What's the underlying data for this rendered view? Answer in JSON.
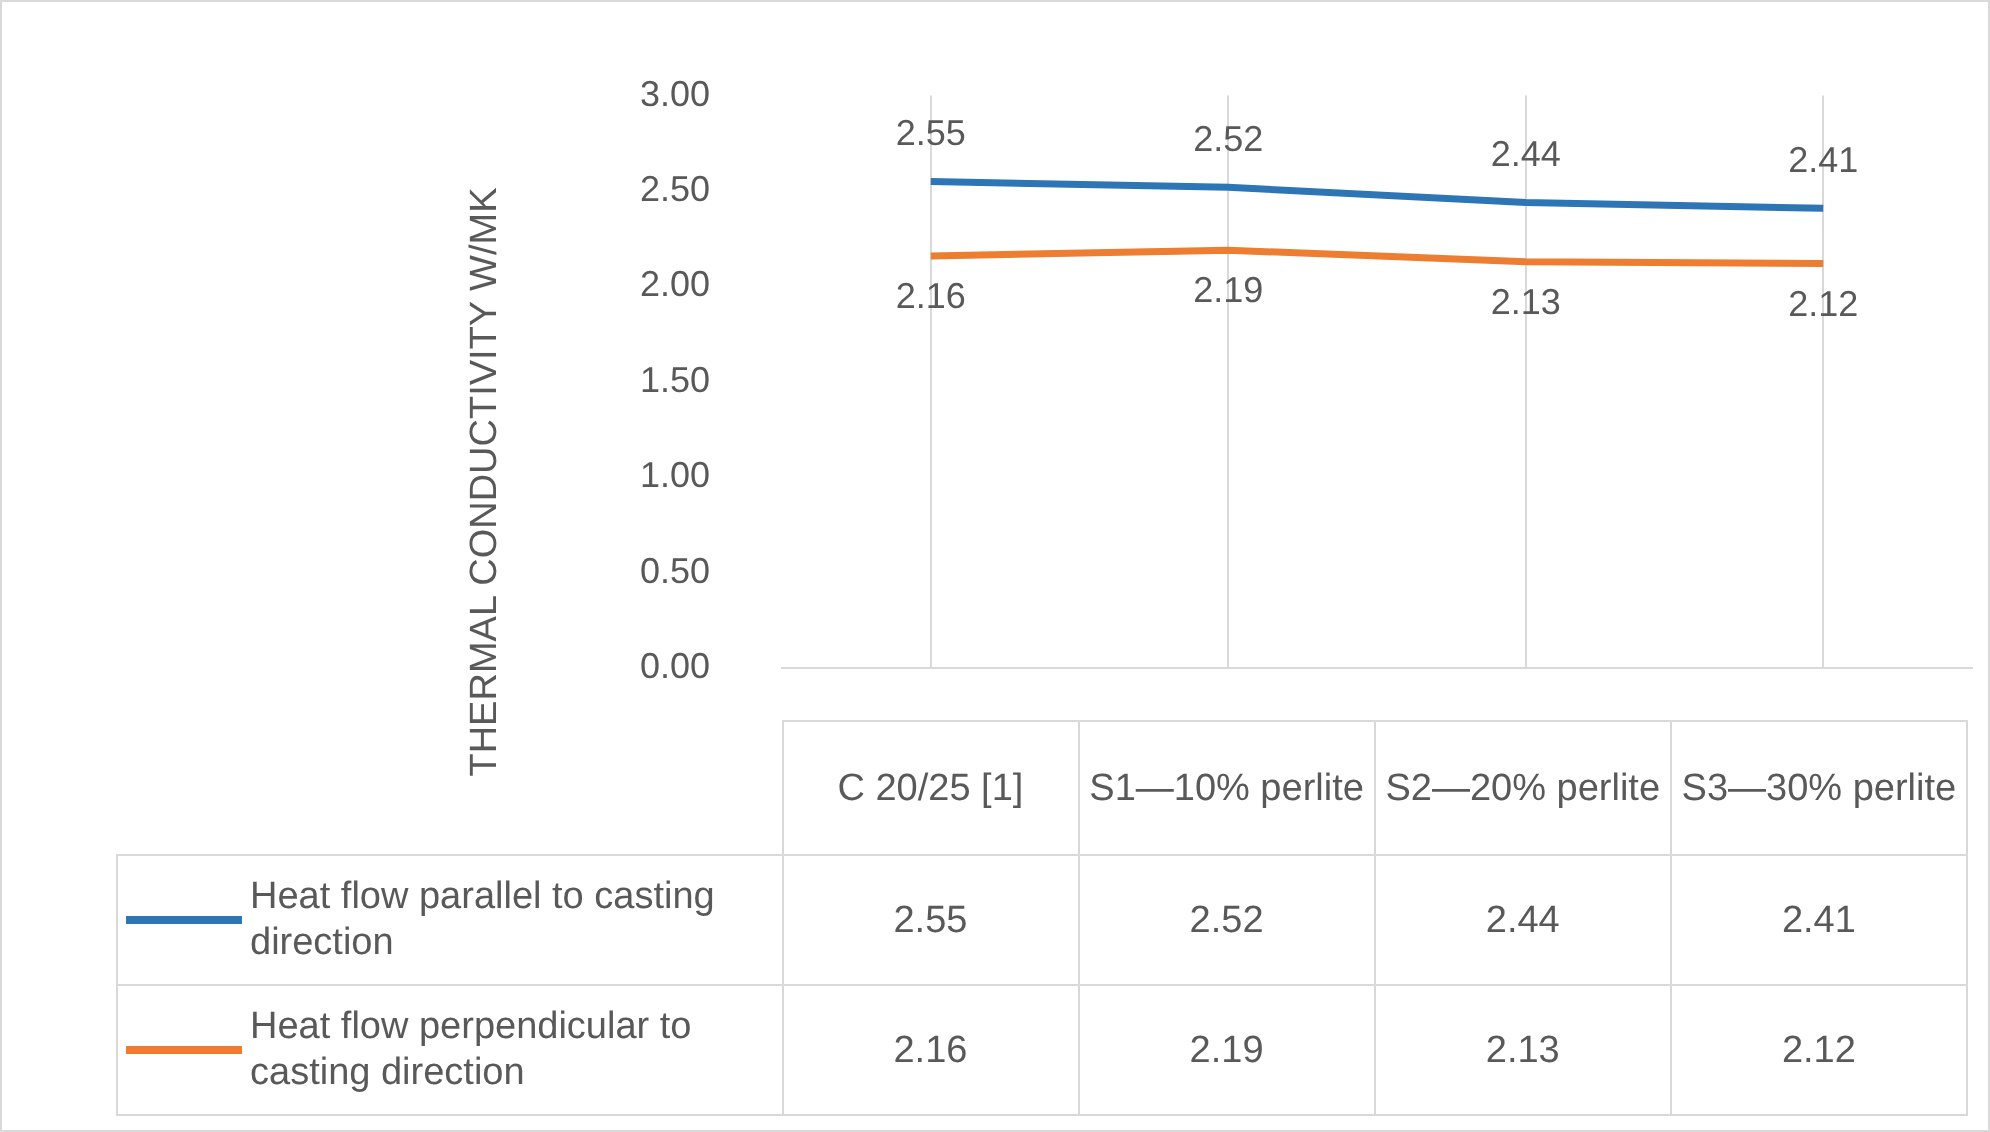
{
  "chart_data": {
    "type": "line",
    "ylabel": "THERMAL CONDUCTIVITY W/MK",
    "categories": [
      "C 20/25 [1]",
      "S1—10% perlite",
      "S2—20% perlite",
      "S3—30% perlite"
    ],
    "series": [
      {
        "name": "Heat flow parallel to casting direction",
        "color": "#2e75b6",
        "values": [
          2.55,
          2.52,
          2.44,
          2.41
        ],
        "value_labels": [
          "2.55",
          "2.52",
          "2.44",
          "2.41"
        ]
      },
      {
        "name": "Heat flow perpendicular to casting direction",
        "color": "#ed7d31",
        "values": [
          2.16,
          2.19,
          2.13,
          2.12
        ],
        "value_labels": [
          "2.16",
          "2.19",
          "2.13",
          "2.12"
        ]
      }
    ],
    "ylim": [
      0,
      3
    ],
    "yticks": [
      {
        "value": 0,
        "label": "0.00"
      },
      {
        "value": 0.5,
        "label": "0.50"
      },
      {
        "value": 1,
        "label": "1.00"
      },
      {
        "value": 1.5,
        "label": "1.50"
      },
      {
        "value": 2,
        "label": "2.00"
      },
      {
        "value": 2.5,
        "label": "2.50"
      },
      {
        "value": 3,
        "label": "3.00"
      }
    ],
    "grid": "x",
    "legend": "bottom",
    "marker": "none",
    "line_style": "solid"
  }
}
